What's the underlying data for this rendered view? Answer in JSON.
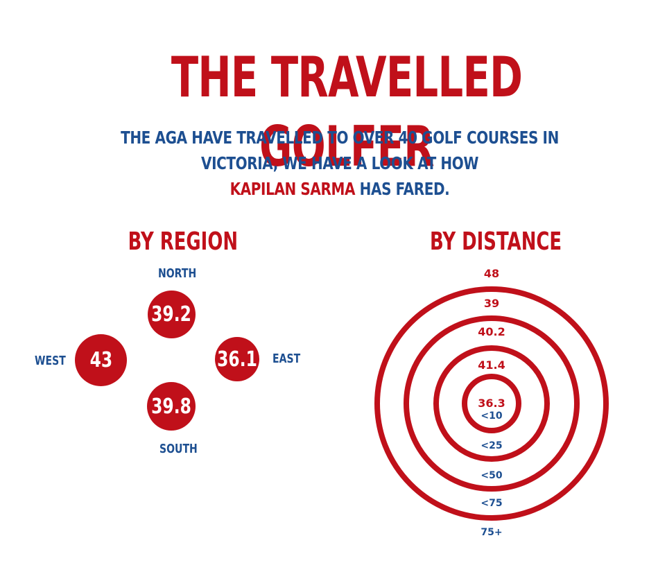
{
  "header": {
    "title": "THE TRAVELLED GOLFER",
    "subtitle_line1": "THE AGA HAVE TRAVELLED TO OVER 40 GOLF COURSES IN VICTORIA, WE HAVE A LOOK AT HOW",
    "subtitle_highlight": "KAPILAN SARMA",
    "subtitle_end": " HAS FARED."
  },
  "colors": {
    "accent_red": "#c0101a",
    "accent_blue": "#1d4f91"
  },
  "chart_data": [
    {
      "type": "bubble",
      "title": "BY REGION",
      "categories": [
        "NORTH",
        "WEST",
        "EAST",
        "SOUTH"
      ],
      "values": [
        39.2,
        43,
        36.1,
        39.8
      ],
      "series": [
        {
          "name": "",
          "labels": [
            "NORTH",
            "WEST",
            "EAST",
            "SOUTH"
          ],
          "values": [
            "39.2",
            "43",
            "36.1",
            "39.8"
          ]
        }
      ]
    },
    {
      "type": "concentric-rings",
      "title": "BY DISTANCE",
      "categories": [
        "<10",
        "<25",
        "<50",
        "<75",
        "75+"
      ],
      "values": [
        36.3,
        41.4,
        40.2,
        39,
        48
      ],
      "series": [
        {
          "name": "",
          "labels": [
            "<10",
            "<25",
            "<50",
            "<75",
            "75+"
          ],
          "values": [
            "36.3",
            "41.4",
            "40.2",
            "39",
            "48"
          ]
        }
      ]
    }
  ]
}
